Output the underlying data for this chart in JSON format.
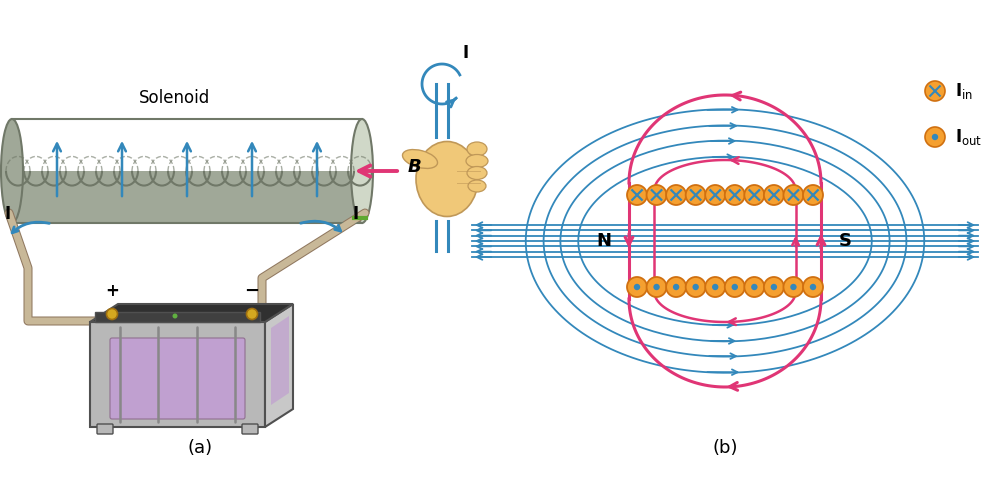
{
  "fig_width": 10.0,
  "fig_height": 4.79,
  "dpi": 100,
  "bg_color": "#ffffff",
  "label_a": "(a)",
  "label_b": "(b)",
  "solenoid_label": "Solenoid",
  "B_label": "B",
  "I_label": "I",
  "N_label": "N",
  "S_label": "S",
  "plus_label": "+",
  "minus_label": "−",
  "coil_color_light": "#d0d8c8",
  "coil_color_dark": "#a0a898",
  "coil_outline": "#707868",
  "wire_color": "#c8b898",
  "wire_outline": "#907860",
  "arrow_blue": "#3388bb",
  "arrow_pink": "#e03575",
  "orange_coil_face": "#f5a030",
  "orange_coil_edge": "#d07010",
  "blue_symbol": "#3388bb",
  "hand_skin": "#f0c878",
  "hand_outline": "#c09858",
  "battery_side": "#b8b8b8",
  "battery_top": "#303030",
  "battery_purple": "#c0a0d0",
  "battery_outline": "#505050",
  "gold_terminal": "#d4a820",
  "green_dot": "#60b040"
}
